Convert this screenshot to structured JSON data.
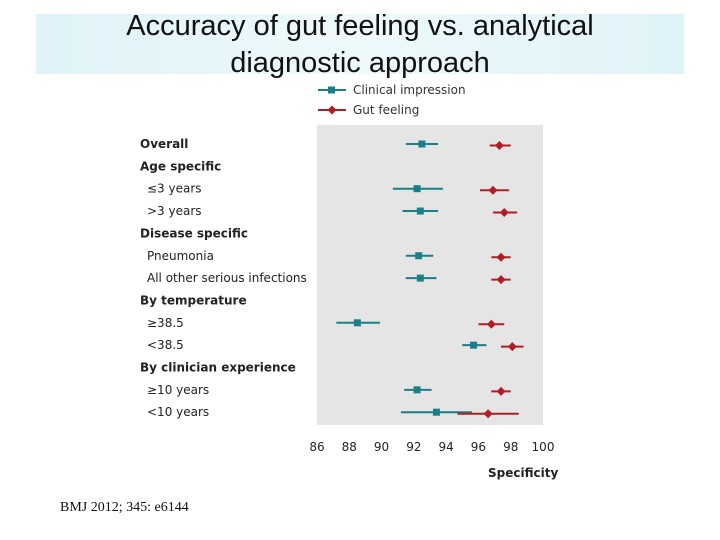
{
  "slide": {
    "title_line1": "Accuracy of gut feeling vs. analytical",
    "title_line2": "diagnostic approach",
    "citation": "BMJ 2012; 345: e6144"
  },
  "chart_data": {
    "type": "forest",
    "xlabel": "Specificity",
    "xlim": [
      86,
      100
    ],
    "xticks": [
      86,
      88,
      90,
      92,
      94,
      96,
      98,
      100
    ],
    "legend_position": "top",
    "series": [
      {
        "name": "Clinical impression",
        "color": "#1a7f86",
        "marker": "square"
      },
      {
        "name": "Gut feeling",
        "color": "#b01e24",
        "marker": "diamond"
      }
    ],
    "rows": [
      {
        "label": "Overall",
        "heading": true,
        "clinical": {
          "est": 92.5,
          "lo": 91.5,
          "hi": 93.5
        },
        "gut": {
          "est": 97.3,
          "lo": 96.7,
          "hi": 98.0
        }
      },
      {
        "label": "Age specific",
        "heading": true
      },
      {
        "label": "≤3 years",
        "heading": false,
        "clinical": {
          "est": 92.2,
          "lo": 90.7,
          "hi": 93.8
        },
        "gut": {
          "est": 96.9,
          "lo": 96.1,
          "hi": 97.9
        }
      },
      {
        "label": ">3 years",
        "heading": false,
        "clinical": {
          "est": 92.4,
          "lo": 91.3,
          "hi": 93.5
        },
        "gut": {
          "est": 97.6,
          "lo": 96.9,
          "hi": 98.4
        }
      },
      {
        "label": "Disease specific",
        "heading": true
      },
      {
        "label": "Pneumonia",
        "heading": false,
        "clinical": {
          "est": 92.3,
          "lo": 91.5,
          "hi": 93.2
        },
        "gut": {
          "est": 97.4,
          "lo": 96.8,
          "hi": 98.0
        }
      },
      {
        "label": "All other serious infections",
        "heading": false,
        "clinical": {
          "est": 92.4,
          "lo": 91.5,
          "hi": 93.4
        },
        "gut": {
          "est": 97.4,
          "lo": 96.8,
          "hi": 98.0
        }
      },
      {
        "label": "By temperature",
        "heading": true
      },
      {
        "label": "≥38.5",
        "heading": false,
        "clinical": {
          "est": 88.5,
          "lo": 87.2,
          "hi": 89.9
        },
        "gut": {
          "est": 96.8,
          "lo": 96.0,
          "hi": 97.6
        }
      },
      {
        "label": "<38.5",
        "heading": false,
        "clinical": {
          "est": 95.7,
          "lo": 95.0,
          "hi": 96.5
        },
        "gut": {
          "est": 98.1,
          "lo": 97.4,
          "hi": 98.8
        }
      },
      {
        "label": "By clinician experience",
        "heading": true
      },
      {
        "label": "≥10 years",
        "heading": false,
        "clinical": {
          "est": 92.2,
          "lo": 91.4,
          "hi": 93.1
        },
        "gut": {
          "est": 97.4,
          "lo": 96.8,
          "hi": 98.0
        }
      },
      {
        "label": "<10 years",
        "heading": false,
        "clinical": {
          "est": 93.4,
          "lo": 91.2,
          "hi": 95.6
        },
        "gut": {
          "est": 96.6,
          "lo": 94.7,
          "hi": 98.5
        }
      }
    ]
  }
}
